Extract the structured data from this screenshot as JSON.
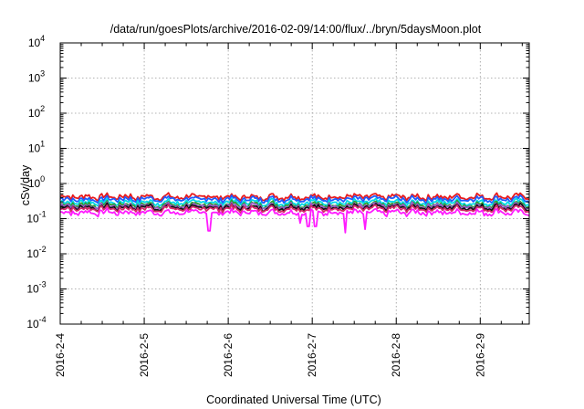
{
  "chart_data": {
    "type": "line",
    "title": "/data/run/goesPlots/archive/2016-02-09/14:00/flux/../bryn/5daysMoon.plot",
    "xlabel": "Coordinated Universal Time (UTC)",
    "ylabel": "cSv/day",
    "y_scale": "log",
    "ylim": [
      0.0001,
      10000
    ],
    "xlim": [
      "2016-02-04T00:00",
      "2016-02-09T14:00"
    ],
    "grid": true,
    "legend": "none",
    "x_tick_labels": [
      "2016-2-4",
      "2016-2-5",
      "2016-2-6",
      "2016-2-7",
      "2016-2-8",
      "2016-2-9"
    ],
    "y_tick_labels": [
      {
        "base": "10",
        "exp": "-4"
      },
      {
        "base": "10",
        "exp": "-3"
      },
      {
        "base": "10",
        "exp": "-2"
      },
      {
        "base": "10",
        "exp": "-1"
      },
      {
        "base": "10",
        "exp": "0"
      },
      {
        "base": "10",
        "exp": "1"
      },
      {
        "base": "10",
        "exp": "2"
      },
      {
        "base": "10",
        "exp": "3"
      },
      {
        "base": "10",
        "exp": "4"
      }
    ],
    "series": [
      {
        "color": "#e8191c",
        "level": 0.42,
        "dips": []
      },
      {
        "color": "#1f5bff",
        "level": 0.36,
        "dips": []
      },
      {
        "color": "#00d8e8",
        "level": 0.29,
        "dips": []
      },
      {
        "color": "#2ca02c",
        "level": 0.25,
        "dips": []
      },
      {
        "color": "#9b59d0",
        "level": 0.23,
        "dips": []
      },
      {
        "color": "#111111",
        "level": 0.21,
        "dips": []
      },
      {
        "color": "#d42a6a",
        "level": 0.19,
        "dips": []
      },
      {
        "color": "#ff1bff",
        "level": 0.15,
        "dips": [
          {
            "x": "2016-02-05T18:30",
            "y": 0.045
          },
          {
            "x": "2016-02-06T20:40",
            "y": 0.075
          },
          {
            "x": "2016-02-06T22:50",
            "y": 0.06
          },
          {
            "x": "2016-02-07T00:50",
            "y": 0.06
          },
          {
            "x": "2016-02-07T09:30",
            "y": 0.04
          },
          {
            "x": "2016-02-07T15:10",
            "y": 0.05
          }
        ]
      }
    ]
  }
}
